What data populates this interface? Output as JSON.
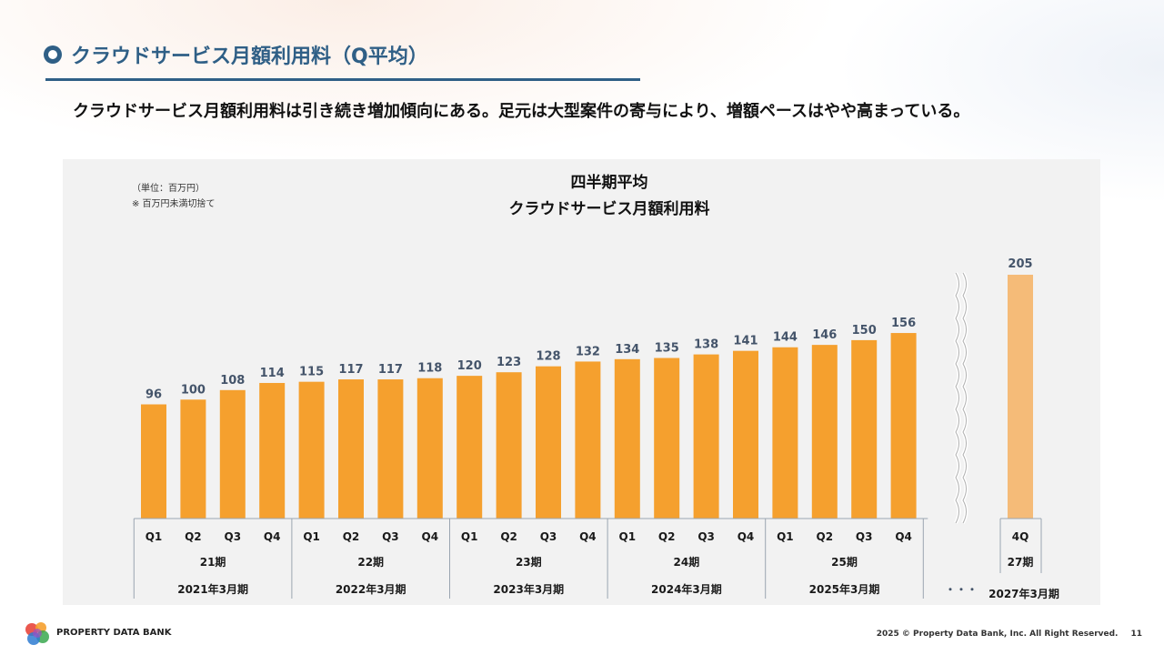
{
  "header": {
    "title": "クラウドサービス月額利用料（Q平均）",
    "lead": "クラウドサービス月額利用料は引き続き増加傾向にある。足元は大型案件の寄与により、増額ペースはやや高まっている。"
  },
  "note": {
    "unit": "（単位：百万円）",
    "rounding": "※ 百万円未満切捨て"
  },
  "chart_data": {
    "type": "bar",
    "title_line1": "四半期平均",
    "title_line2": "クラウドサービス月額利用料",
    "ylabel": "",
    "xlabel": "",
    "ylim": [
      0,
      205
    ],
    "quarters": [
      "Q1",
      "Q2",
      "Q3",
      "Q4",
      "Q1",
      "Q2",
      "Q3",
      "Q4",
      "Q1",
      "Q2",
      "Q3",
      "Q4",
      "Q1",
      "Q2",
      "Q3",
      "Q4",
      "Q1",
      "Q2",
      "Q3",
      "Q4"
    ],
    "values": [
      96,
      100,
      108,
      114,
      115,
      117,
      117,
      118,
      120,
      123,
      128,
      132,
      134,
      135,
      138,
      141,
      144,
      146,
      150,
      156
    ],
    "periods": [
      "21期",
      "22期",
      "23期",
      "24期",
      "25期"
    ],
    "fiscal_years": [
      "2021年3月期",
      "2022年3月期",
      "2023年3月期",
      "2024年3月期",
      "2025年3月期"
    ],
    "forecast": {
      "quarter": "4Q",
      "value": 205,
      "period": "27期",
      "fiscal_year": "2027年3月期"
    },
    "gap_marker": "・・・",
    "bar_color": "#f5a02e",
    "forecast_color": "#f5bb78",
    "label_color": "#44546a"
  },
  "footer": {
    "brand": "PROPERTY DATA BANK",
    "copyright": "2025 © Property Data Bank, Inc. All Right Reserved.",
    "page": "11"
  }
}
